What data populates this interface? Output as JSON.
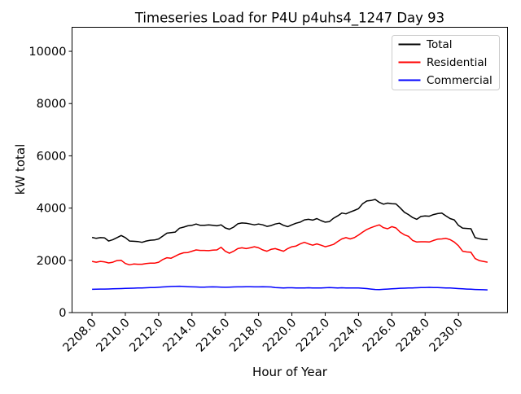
{
  "chart_data": {
    "type": "line",
    "title": "Timeseries Load for P4U p4uhs4_1247  Day 93",
    "xlabel": "Hour of Year",
    "ylabel": "kW total",
    "grid": false,
    "xlim": [
      2206.8,
      2232.95
    ],
    "ylim": [
      0,
      10920
    ],
    "xtick_labels": [
      "2208.0",
      "2210.0",
      "2212.0",
      "2214.0",
      "2216.0",
      "2218.0",
      "2220.0",
      "2222.0",
      "2224.0",
      "2226.0",
      "2228.0",
      "2230.0"
    ],
    "ytick_values": [
      0,
      2000,
      4000,
      6000,
      8000,
      10000
    ],
    "tick_label_rotation": 45,
    "x_start": 2208.0,
    "x_step": 0.25,
    "legend": {
      "position": "upper right",
      "border_color": "#cccccc",
      "entries": [
        "Total",
        "Residential",
        "Commercial"
      ]
    },
    "series": [
      {
        "name": "Total",
        "color": "#000000",
        "values": [
          2880,
          2840,
          2870,
          2860,
          2740,
          2790,
          2870,
          2950,
          2870,
          2740,
          2730,
          2720,
          2690,
          2740,
          2770,
          2780,
          2820,
          2930,
          3040,
          3060,
          3080,
          3230,
          3270,
          3320,
          3340,
          3390,
          3340,
          3340,
          3360,
          3340,
          3320,
          3360,
          3240,
          3190,
          3270,
          3400,
          3430,
          3420,
          3390,
          3360,
          3390,
          3360,
          3300,
          3330,
          3390,
          3420,
          3340,
          3290,
          3360,
          3420,
          3460,
          3550,
          3570,
          3540,
          3600,
          3520,
          3460,
          3480,
          3610,
          3700,
          3810,
          3780,
          3850,
          3910,
          3980,
          4170,
          4270,
          4290,
          4330,
          4220,
          4150,
          4190,
          4170,
          4160,
          4010,
          3840,
          3750,
          3640,
          3570,
          3680,
          3700,
          3690,
          3750,
          3790,
          3810,
          3700,
          3600,
          3550,
          3340,
          3230,
          3220,
          3210,
          2870,
          2830,
          2800,
          2790
        ]
      },
      {
        "name": "Residential",
        "color": "#ff0000",
        "values": [
          1960,
          1930,
          1960,
          1940,
          1900,
          1930,
          1990,
          2000,
          1880,
          1830,
          1860,
          1850,
          1850,
          1880,
          1890,
          1890,
          1930,
          2030,
          2100,
          2080,
          2160,
          2240,
          2290,
          2300,
          2350,
          2400,
          2380,
          2380,
          2370,
          2390,
          2400,
          2500,
          2350,
          2270,
          2350,
          2450,
          2480,
          2450,
          2480,
          2520,
          2480,
          2400,
          2350,
          2420,
          2450,
          2400,
          2350,
          2450,
          2520,
          2550,
          2630,
          2690,
          2630,
          2580,
          2630,
          2580,
          2520,
          2560,
          2610,
          2720,
          2820,
          2870,
          2820,
          2870,
          2970,
          3080,
          3180,
          3250,
          3310,
          3360,
          3250,
          3210,
          3290,
          3240,
          3080,
          2980,
          2920,
          2760,
          2700,
          2710,
          2710,
          2700,
          2760,
          2810,
          2820,
          2840,
          2790,
          2700,
          2560,
          2350,
          2320,
          2310,
          2070,
          1990,
          1960,
          1930
        ]
      },
      {
        "name": "Commercial",
        "color": "#0000ff",
        "values": [
          890,
          895,
          900,
          900,
          905,
          910,
          915,
          920,
          925,
          930,
          935,
          940,
          945,
          950,
          955,
          960,
          970,
          980,
          990,
          1000,
          1005,
          1010,
          1000,
          990,
          985,
          980,
          975,
          975,
          980,
          985,
          980,
          975,
          970,
          975,
          980,
          985,
          985,
          990,
          990,
          985,
          985,
          990,
          985,
          980,
          960,
          950,
          945,
          950,
          950,
          945,
          940,
          945,
          950,
          945,
          940,
          945,
          950,
          955,
          950,
          945,
          950,
          945,
          940,
          945,
          940,
          930,
          920,
          900,
          885,
          880,
          890,
          900,
          910,
          920,
          930,
          935,
          940,
          945,
          950,
          955,
          960,
          965,
          960,
          955,
          950,
          945,
          940,
          930,
          920,
          910,
          900,
          895,
          885,
          880,
          875,
          870
        ]
      }
    ]
  }
}
